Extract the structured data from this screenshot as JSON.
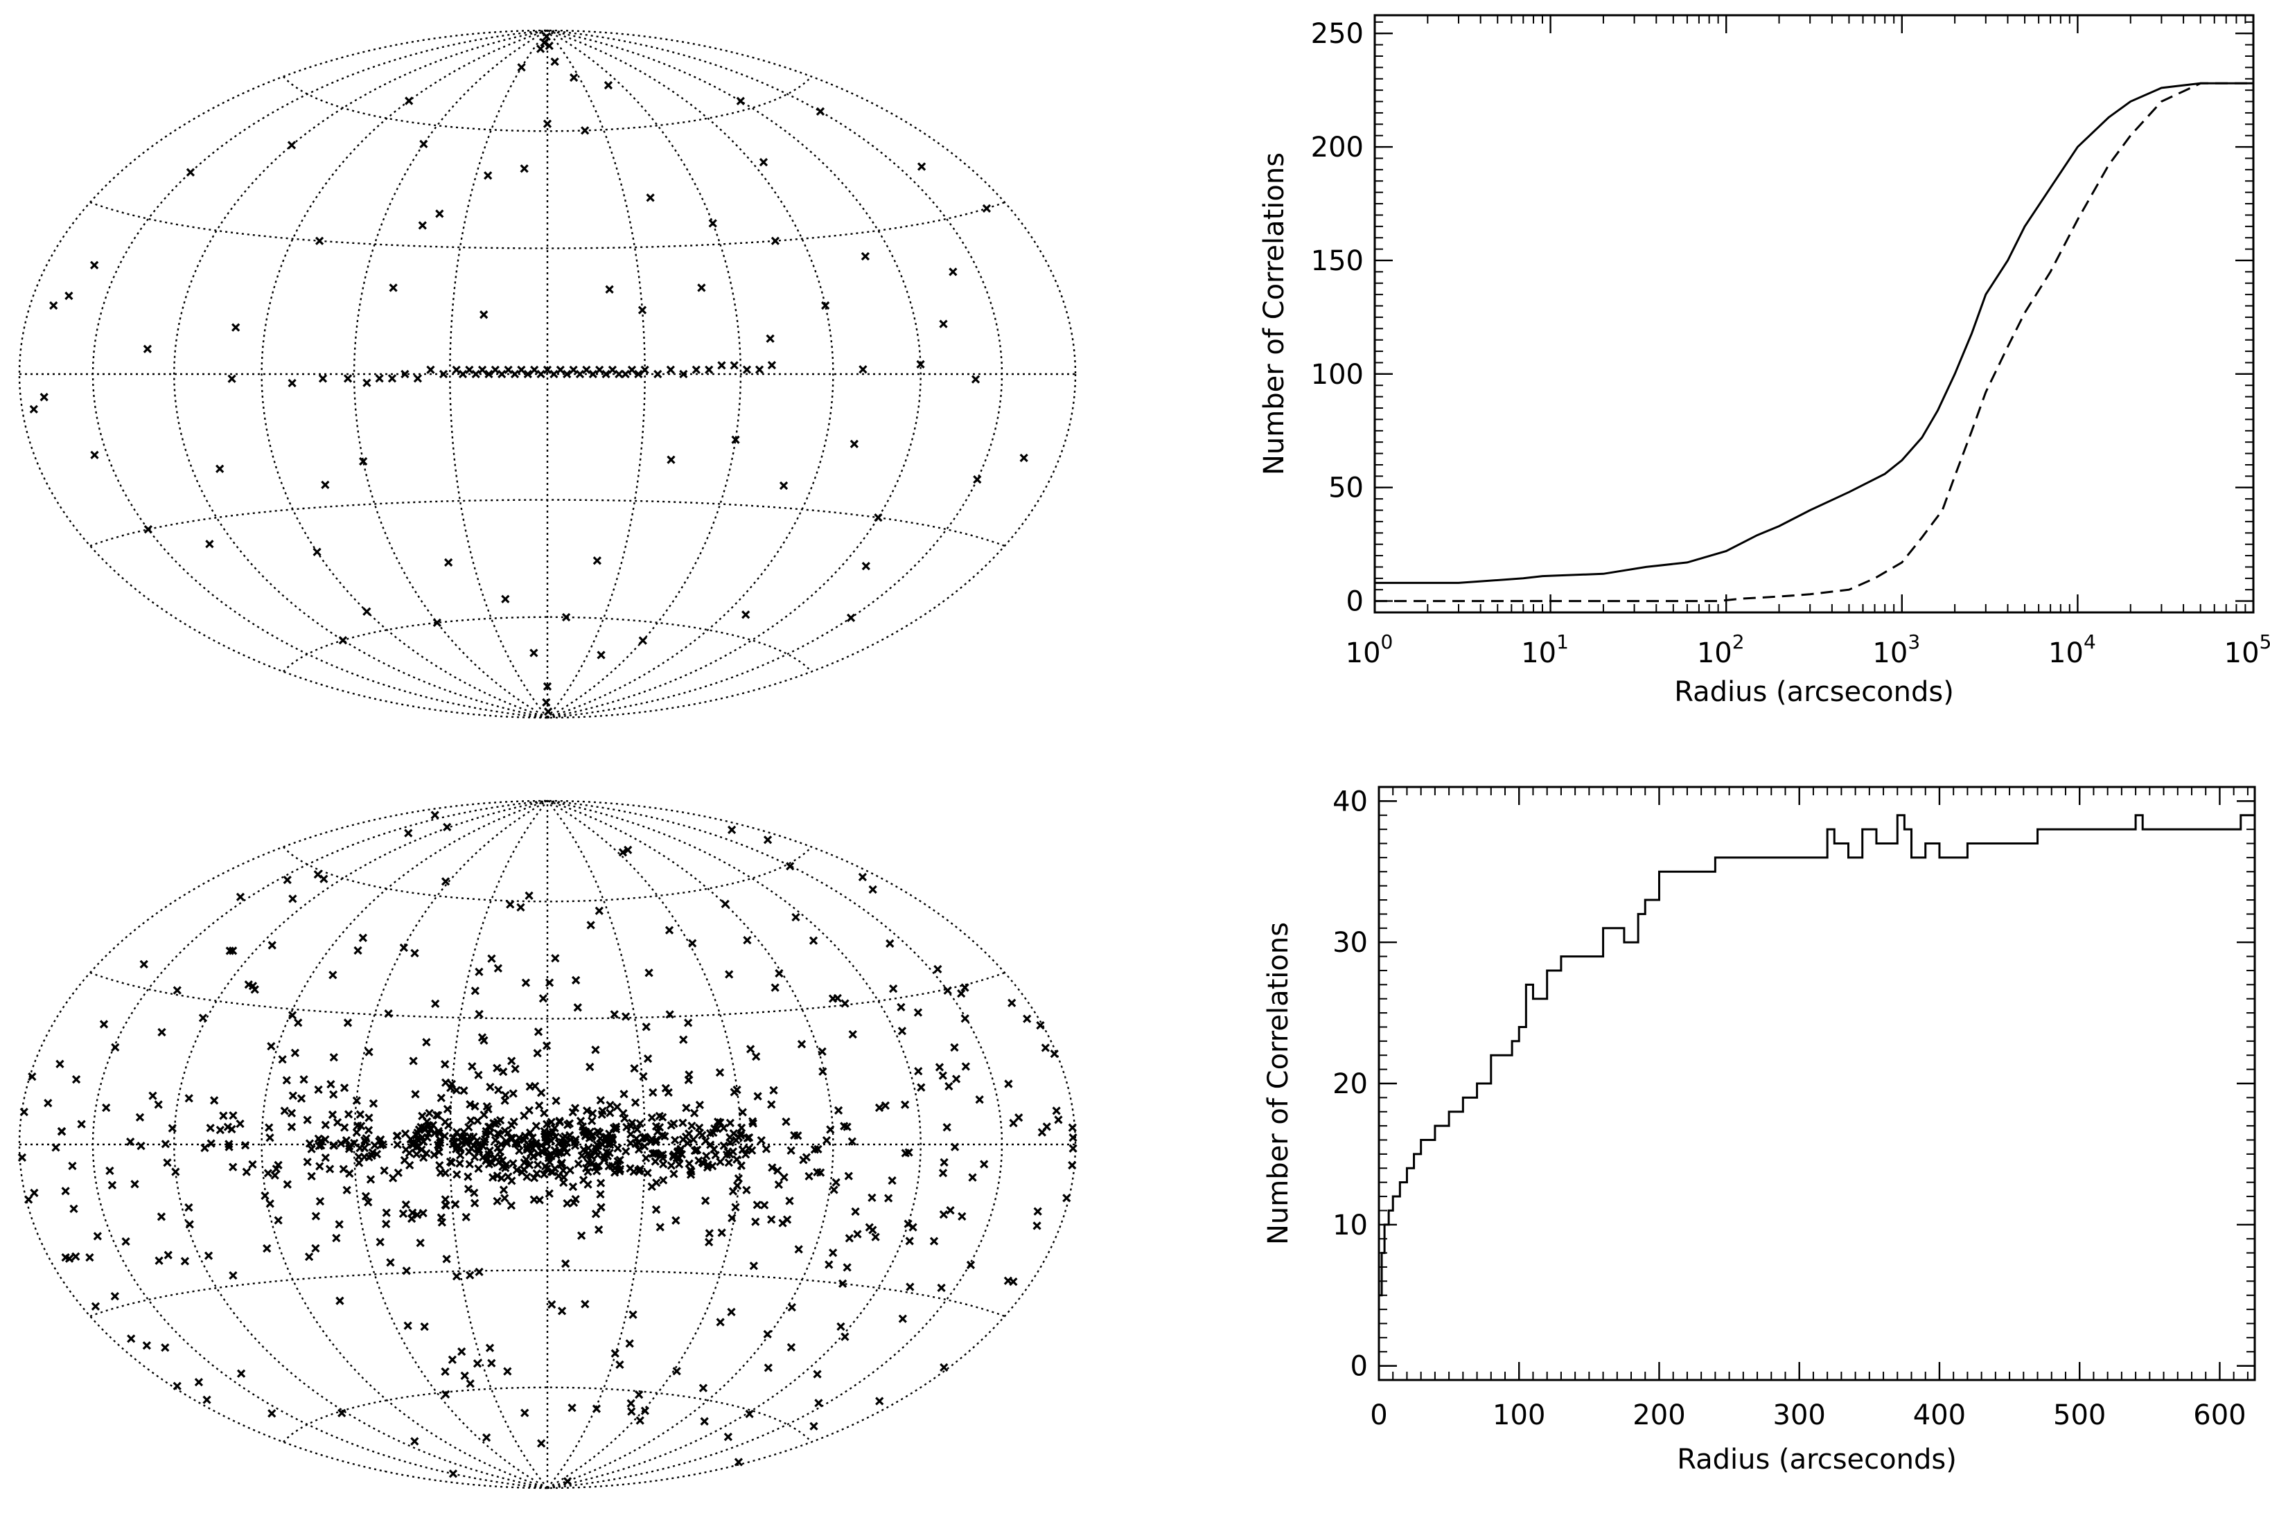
{
  "chart_data": [
    {
      "type": "scatter",
      "panel": "top-left",
      "projection": "aitoff-hammer",
      "title": "",
      "description_note": "all-sky map, sparse sample concentrated on the galactic plane",
      "graticule": {
        "lon_step_deg": 30,
        "lat_step_deg": 30
      },
      "points_lonlat": [
        [
          -4,
          1
        ],
        [
          -2,
          0
        ],
        [
          0,
          1
        ],
        [
          2,
          0
        ],
        [
          4,
          1
        ],
        [
          6,
          0
        ],
        [
          8,
          1
        ],
        [
          10,
          0
        ],
        [
          12,
          1
        ],
        [
          14,
          0
        ],
        [
          16,
          1
        ],
        [
          18,
          0
        ],
        [
          20,
          1
        ],
        [
          22,
          0
        ],
        [
          24,
          1
        ],
        [
          26,
          0
        ],
        [
          28,
          1
        ],
        [
          -6,
          0
        ],
        [
          -8,
          1
        ],
        [
          -10,
          0
        ],
        [
          -12,
          1
        ],
        [
          -14,
          0
        ],
        [
          -16,
          1
        ],
        [
          -18,
          0
        ],
        [
          -20,
          1
        ],
        [
          -22,
          0
        ],
        [
          -24,
          0
        ],
        [
          -26,
          1
        ],
        [
          -28,
          0
        ],
        [
          -30,
          1
        ],
        [
          -34,
          0
        ],
        [
          -38,
          1
        ],
        [
          -42,
          0
        ],
        [
          -46,
          1
        ],
        [
          -50,
          1
        ],
        [
          -54,
          2
        ],
        [
          -58,
          2
        ],
        [
          -62,
          1
        ],
        [
          -66,
          1
        ],
        [
          -70,
          2
        ],
        [
          32,
          0
        ],
        [
          36,
          1
        ],
        [
          40,
          -1
        ],
        [
          44,
          0
        ],
        [
          48,
          -1
        ],
        [
          52,
          -1
        ],
        [
          56,
          -2
        ],
        [
          62,
          -1
        ],
        [
          70,
          -1
        ],
        [
          80,
          -2
        ],
        [
          100,
          -1
        ],
        [
          -100,
          1
        ],
        [
          -120,
          2
        ],
        [
          -140,
          -1
        ],
        [
          170,
          -4
        ],
        [
          175,
          -6
        ],
        [
          -150,
          55
        ],
        [
          -120,
          62
        ],
        [
          -95,
          48
        ],
        [
          -80,
          30
        ],
        [
          -60,
          35
        ],
        [
          -40,
          42
        ],
        [
          -20,
          60
        ],
        [
          0,
          62
        ],
        [
          10,
          50
        ],
        [
          25,
          48
        ],
        [
          40,
          38
        ],
        [
          45,
          35
        ],
        [
          60,
          55
        ],
        [
          90,
          65
        ],
        [
          120,
          50
        ],
        [
          150,
          40
        ],
        [
          160,
          20
        ],
        [
          165,
          14
        ],
        [
          170,
          12
        ],
        [
          -160,
          40
        ],
        [
          -170,
          30
        ],
        [
          -140,
          20
        ],
        [
          -130,
          10
        ],
        [
          -110,
          25
        ],
        [
          -90,
          15
        ],
        [
          -70,
          8
        ],
        [
          -50,
          20
        ],
        [
          -30,
          15
        ],
        [
          -20,
          20
        ],
        [
          20,
          14
        ],
        [
          50,
          20
        ],
        [
          80,
          30
        ],
        [
          100,
          10
        ],
        [
          130,
          5
        ],
        [
          -150,
          -20
        ],
        [
          -165,
          -15
        ],
        [
          -120,
          -30
        ],
        [
          -100,
          -15
        ],
        [
          -80,
          -25
        ],
        [
          -60,
          -15
        ],
        [
          -40,
          -20
        ],
        [
          -20,
          -45
        ],
        [
          -10,
          -60
        ],
        [
          0,
          -80
        ],
        [
          10,
          -70
        ],
        [
          20,
          -55
        ],
        [
          40,
          -45
        ],
        [
          60,
          -20
        ],
        [
          75,
          -25
        ],
        [
          90,
          -40
        ],
        [
          110,
          -20
        ],
        [
          130,
          -35
        ],
        [
          150,
          -30
        ],
        [
          155,
          -15
        ],
        [
          -130,
          -40
        ],
        [
          -150,
          -50
        ],
        [
          -100,
          -55
        ],
        [
          -60,
          -65
        ],
        [
          -40,
          -70
        ],
        [
          60,
          -60
        ],
        [
          90,
          -55
        ],
        [
          120,
          -60
        ],
        [
          -5,
          85
        ],
        [
          5,
          88
        ],
        [
          10,
          86
        ],
        [
          15,
          84
        ],
        [
          -10,
          80
        ],
        [
          -5,
          -88
        ],
        [
          3,
          -85
        ],
        [
          -25,
          75
        ],
        [
          -50,
          72
        ],
        [
          30,
          78
        ]
      ]
    },
    {
      "type": "line",
      "panel": "top-right",
      "title": "",
      "xlabel": "Radius (arcseconds)",
      "ylabel": "Number of Correlations",
      "xscale": "log",
      "xlim": [
        1,
        100000
      ],
      "ylim": [
        -5,
        258
      ],
      "xticks": [
        1,
        10,
        100,
        1000,
        10000,
        100000
      ],
      "xtick_base": [
        "10",
        "10",
        "10",
        "10",
        "10",
        "10"
      ],
      "xtick_exp": [
        "0",
        "1",
        "2",
        "3",
        "4",
        "5"
      ],
      "yticks": [
        0,
        50,
        100,
        150,
        200,
        250
      ],
      "ytick_labels": [
        "0",
        "50",
        "100",
        "150",
        "200",
        "250"
      ],
      "series": [
        {
          "name": "solid",
          "style": "solid",
          "x": [
            1,
            3,
            7,
            9,
            20,
            35,
            60,
            100,
            150,
            200,
            300,
            500,
            800,
            1000,
            1300,
            1600,
            2000,
            2500,
            3000,
            4000,
            5000,
            7000,
            10000,
            15000,
            20000,
            30000,
            50000,
            100000
          ],
          "y": [
            8,
            8,
            10,
            11,
            12,
            15,
            17,
            22,
            29,
            33,
            40,
            48,
            56,
            62,
            72,
            84,
            100,
            118,
            135,
            150,
            165,
            182,
            200,
            213,
            220,
            226,
            228,
            228
          ]
        },
        {
          "name": "dashed",
          "style": "dashed",
          "x": [
            1,
            90,
            120,
            200,
            300,
            500,
            700,
            1000,
            1300,
            1700,
            2000,
            2500,
            3000,
            4000,
            5000,
            7000,
            10000,
            15000,
            20000,
            30000,
            50000,
            100000
          ],
          "y": [
            0,
            0,
            1,
            2,
            3,
            5,
            10,
            17,
            28,
            40,
            55,
            75,
            92,
            112,
            127,
            145,
            168,
            192,
            205,
            220,
            228,
            228
          ]
        }
      ]
    },
    {
      "type": "scatter",
      "panel": "bottom-left",
      "projection": "aitoff-hammer",
      "title": "",
      "description_note": "all-sky map, dense sample strongly concentrated toward the galactic centre and plane",
      "graticule": {
        "lon_step_deg": 30,
        "lat_step_deg": 30
      },
      "generated_points": {
        "count": 950,
        "seed": 7
      }
    },
    {
      "type": "line",
      "panel": "bottom-right",
      "title": "",
      "xlabel": "Radius (arcseconds)",
      "ylabel": "Number of Correlations",
      "xscale": "linear",
      "xlim": [
        0,
        625
      ],
      "ylim": [
        -1,
        41
      ],
      "xticks": [
        0,
        100,
        200,
        300,
        400,
        500,
        600
      ],
      "xtick_labels": [
        "0",
        "100",
        "200",
        "300",
        "400",
        "500",
        "600"
      ],
      "yticks": [
        0,
        10,
        20,
        30,
        40
      ],
      "ytick_labels": [
        "0",
        "10",
        "20",
        "30",
        "40"
      ],
      "series": [
        {
          "name": "solid",
          "style": "step",
          "x": [
            0,
            2,
            4,
            7,
            10,
            15,
            20,
            25,
            30,
            40,
            50,
            60,
            70,
            80,
            95,
            100,
            105,
            110,
            120,
            130,
            140,
            160,
            175,
            185,
            190,
            200,
            215,
            240,
            270,
            315,
            320,
            325,
            335,
            345,
            355,
            370,
            375,
            380,
            390,
            400,
            420,
            470,
            540,
            545,
            560,
            610,
            615,
            625
          ],
          "y": [
            5,
            8,
            10,
            11,
            12,
            13,
            14,
            15,
            16,
            17,
            18,
            19,
            20,
            22,
            23,
            24,
            27,
            26,
            28,
            29,
            29,
            31,
            30,
            32,
            33,
            35,
            35,
            36,
            36,
            36,
            38,
            37,
            36,
            38,
            37,
            39,
            38,
            36,
            37,
            36,
            37,
            38,
            39,
            38,
            38,
            38,
            39,
            39
          ]
        }
      ]
    }
  ]
}
